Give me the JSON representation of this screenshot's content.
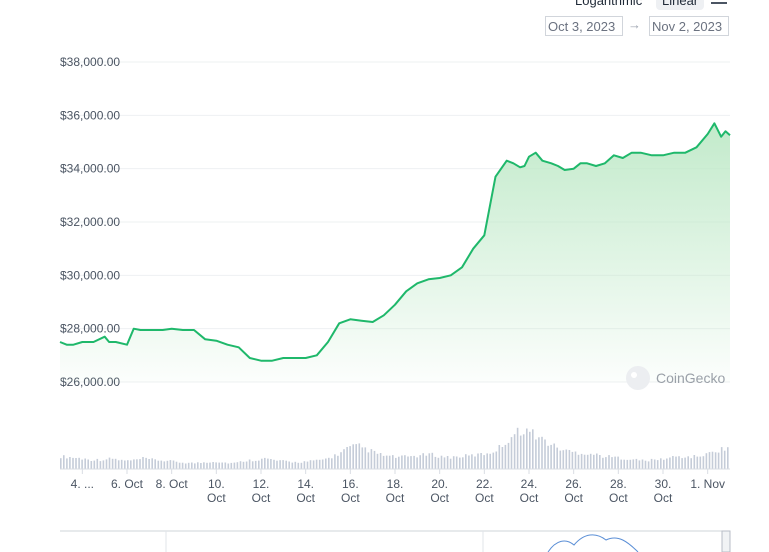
{
  "controls": {
    "scale_options": [
      "Logarithmic",
      "Linear"
    ],
    "active_scale": "Linear",
    "date_from": "Oct 3, 2023",
    "date_to": "Nov 2, 2023",
    "arrow": "→"
  },
  "watermark": "CoinGecko",
  "chart_data": {
    "type": "area",
    "title": "",
    "xlabel": "",
    "ylabel": "",
    "ylim": [
      26000,
      38000
    ],
    "y_ticks": [
      "$26,000.00",
      "$28,000.00",
      "$30,000.00",
      "$32,000.00",
      "$34,000.00",
      "$36,000.00",
      "$38,000.00"
    ],
    "y_tick_values": [
      26000,
      28000,
      30000,
      32000,
      34000,
      36000,
      38000
    ],
    "x_range_days": [
      0,
      30
    ],
    "x_tick_labels": [
      [
        "4. ..."
      ],
      [
        "6. Oct"
      ],
      [
        "8. Oct"
      ],
      [
        "10.",
        "Oct"
      ],
      [
        "12.",
        "Oct"
      ],
      [
        "14.",
        "Oct"
      ],
      [
        "16.",
        "Oct"
      ],
      [
        "18.",
        "Oct"
      ],
      [
        "20.",
        "Oct"
      ],
      [
        "22.",
        "Oct"
      ],
      [
        "24.",
        "Oct"
      ],
      [
        "26.",
        "Oct"
      ],
      [
        "28.",
        "Oct"
      ],
      [
        "30.",
        "Oct"
      ],
      [
        "1. Nov"
      ]
    ],
    "x_tick_days": [
      1,
      3,
      5,
      7,
      9,
      11,
      13,
      15,
      17,
      19,
      21,
      23,
      25,
      27,
      29
    ],
    "price": {
      "x": [
        0,
        0.3,
        0.6,
        1.0,
        1.5,
        2.0,
        2.2,
        2.5,
        3.0,
        3.3,
        3.6,
        3.9,
        4.2,
        4.6,
        5.0,
        5.5,
        6.0,
        6.5,
        7.0,
        7.5,
        8.0,
        8.5,
        9.0,
        9.5,
        10.0,
        10.5,
        11.0,
        11.5,
        12.0,
        12.5,
        13.0,
        13.5,
        14.0,
        14.5,
        15.0,
        15.5,
        16.0,
        16.5,
        17.0,
        17.5,
        18.0,
        18.5,
        19.0,
        19.5,
        20.0,
        20.3,
        20.6,
        20.8,
        21.0,
        21.3,
        21.6,
        22.0,
        22.3,
        22.6,
        23.0,
        23.3,
        23.6,
        24.0,
        24.4,
        24.8,
        25.2,
        25.6,
        26.0,
        26.5,
        27.0,
        27.5,
        28.0,
        28.5,
        29.0,
        29.3,
        29.6,
        29.8,
        30.0
      ],
      "y": [
        27500,
        27400,
        27400,
        27500,
        27500,
        27700,
        27500,
        27500,
        27400,
        28000,
        27950,
        27950,
        27950,
        27950,
        28000,
        27950,
        27950,
        27600,
        27550,
        27400,
        27300,
        26900,
        26800,
        26800,
        26900,
        26900,
        26900,
        27000,
        27500,
        28200,
        28350,
        28300,
        28250,
        28500,
        28900,
        29400,
        29700,
        29850,
        29900,
        30000,
        30300,
        31000,
        31500,
        33700,
        34300,
        34200,
        34050,
        34100,
        34450,
        34600,
        34300,
        34200,
        34100,
        33950,
        34000,
        34200,
        34200,
        34100,
        34200,
        34500,
        34400,
        34600,
        34600,
        34500,
        34500,
        34600,
        34600,
        34800,
        35300,
        35700,
        35200,
        35400,
        35250
      ]
    },
    "volume_relative": [
      0.3,
      0.28,
      0.25,
      0.22,
      0.22,
      0.25,
      0.2,
      0.2,
      0.25,
      0.22,
      0.2,
      0.18,
      0.15,
      0.14,
      0.16,
      0.18,
      0.15,
      0.14,
      0.2,
      0.22,
      0.25,
      0.2,
      0.18,
      0.16,
      0.18,
      0.2,
      0.25,
      0.35,
      0.5,
      0.55,
      0.45,
      0.35,
      0.3,
      0.28,
      0.3,
      0.32,
      0.35,
      0.3,
      0.28,
      0.3,
      0.32,
      0.35,
      0.4,
      0.55,
      0.8,
      0.95,
      0.85,
      0.7,
      0.55,
      0.45,
      0.4,
      0.38,
      0.35,
      0.3,
      0.28,
      0.25,
      0.22,
      0.2,
      0.22,
      0.25,
      0.3,
      0.28,
      0.3,
      0.35,
      0.45,
      0.5
    ],
    "colors": {
      "line": "#1fb86b",
      "area_top": "#bfe9c8",
      "grid": "#eef0f2",
      "volume": "#c5ccd8",
      "axis_text": "#4b5563"
    }
  }
}
